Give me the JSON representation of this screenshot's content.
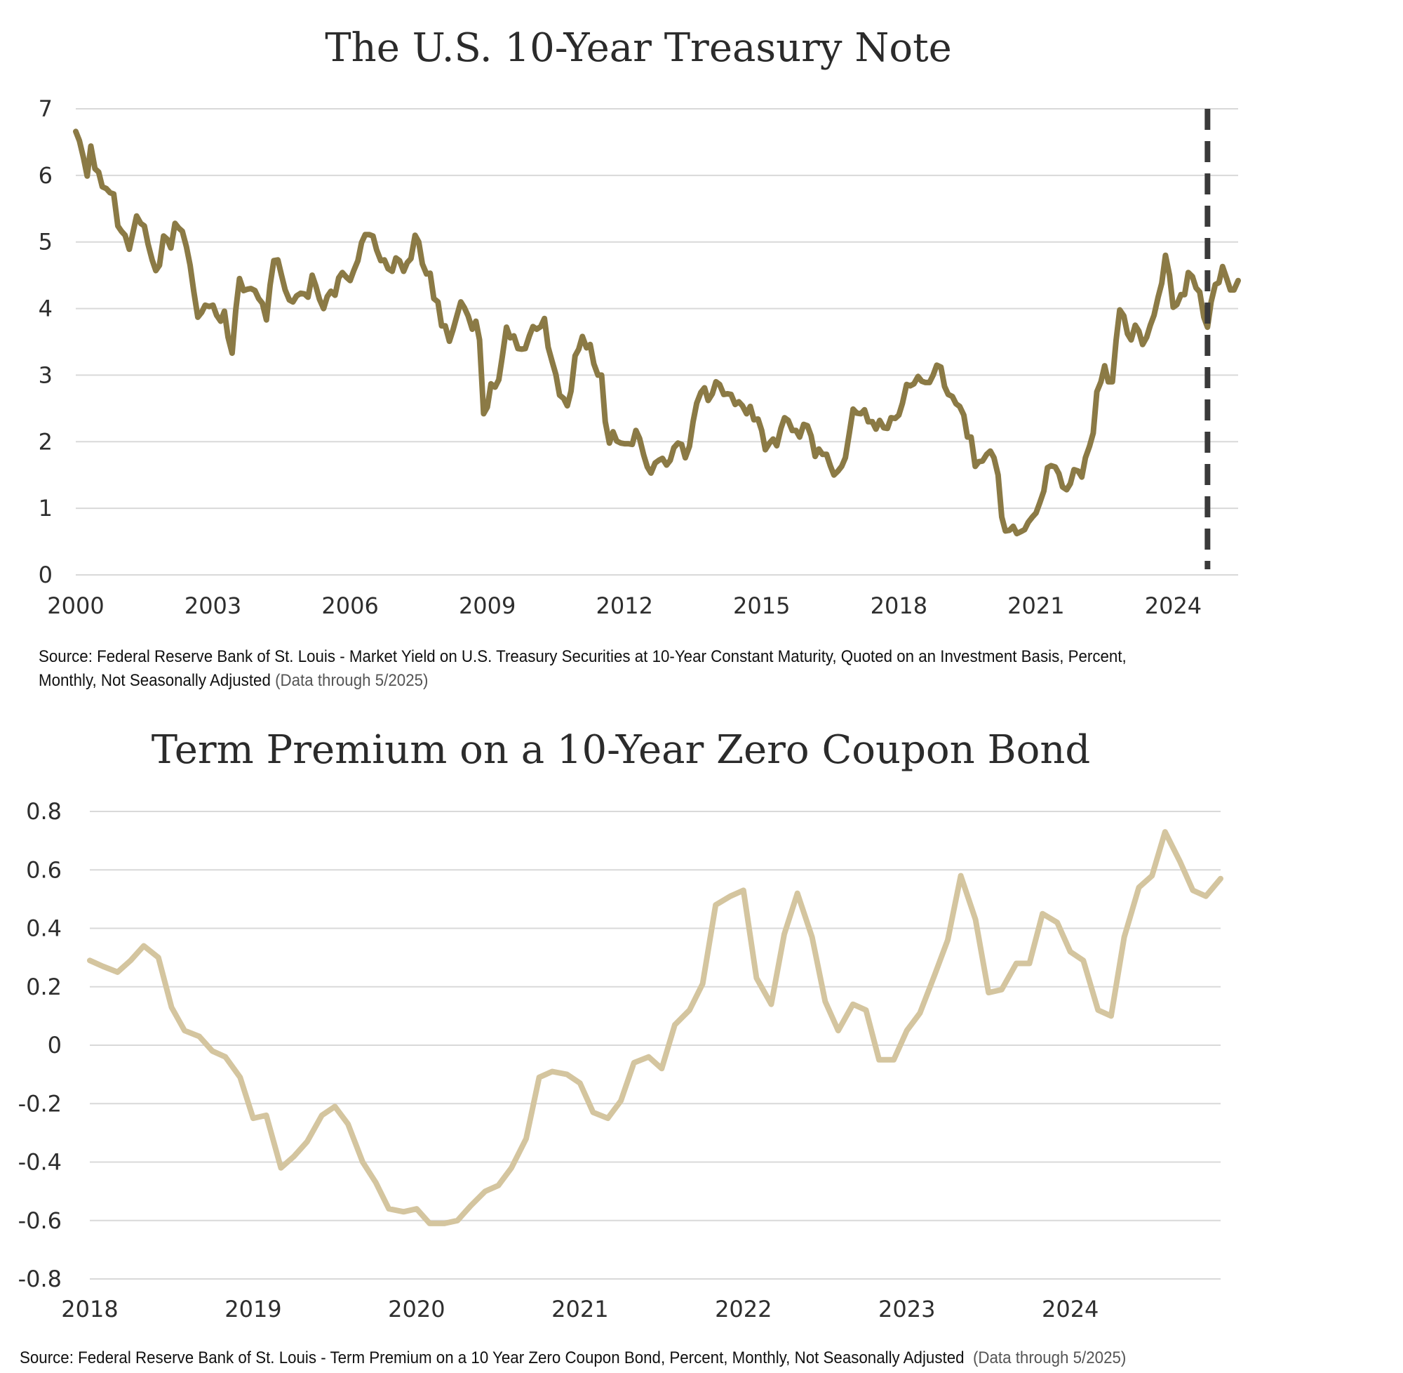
{
  "chart_data": [
    {
      "type": "line",
      "title": "The U.S. 10-Year Treasury Note",
      "xlabel": "",
      "ylabel": "",
      "ylim": [
        0,
        7
      ],
      "xlim": [
        2000.0,
        2025.42
      ],
      "x_ticks": [
        "2000",
        "2003",
        "2006",
        "2009",
        "2012",
        "2015",
        "2018",
        "2021",
        "2024"
      ],
      "y_ticks": [
        "0",
        "1",
        "2",
        "3",
        "4",
        "5",
        "6",
        "7"
      ],
      "grid": true,
      "legend": "none",
      "line_color": "#8b7a45",
      "marker_line": {
        "x": 2024.75,
        "style": "dashed",
        "color": "#3a3a3a"
      },
      "series": [
        {
          "x": [
            2000.0,
            2000.08,
            2000.17,
            2000.25,
            2000.33,
            2000.42,
            2000.5,
            2000.58,
            2000.67,
            2000.75,
            2000.83,
            2000.92,
            2001.0,
            2001.08,
            2001.17,
            2001.25,
            2001.33,
            2001.42,
            2001.5,
            2001.58,
            2001.67,
            2001.75,
            2001.83,
            2001.92,
            2002.0,
            2002.08,
            2002.17,
            2002.25,
            2002.33,
            2002.42,
            2002.5,
            2002.58,
            2002.67,
            2002.75,
            2002.83,
            2002.92,
            2003.0,
            2003.08,
            2003.17,
            2003.25,
            2003.33,
            2003.42,
            2003.5,
            2003.58,
            2003.67,
            2003.75,
            2003.83,
            2003.92,
            2004.0,
            2004.08,
            2004.17,
            2004.25,
            2004.33,
            2004.42,
            2004.5,
            2004.58,
            2004.67,
            2004.75,
            2004.83,
            2004.92,
            2005.0,
            2005.08,
            2005.17,
            2005.25,
            2005.33,
            2005.42,
            2005.5,
            2005.58,
            2005.67,
            2005.75,
            2005.83,
            2005.92,
            2006.0,
            2006.08,
            2006.17,
            2006.25,
            2006.33,
            2006.42,
            2006.5,
            2006.58,
            2006.67,
            2006.75,
            2006.83,
            2006.92,
            2007.0,
            2007.08,
            2007.17,
            2007.25,
            2007.33,
            2007.42,
            2007.5,
            2007.58,
            2007.67,
            2007.75,
            2007.83,
            2007.92,
            2008.0,
            2008.08,
            2008.17,
            2008.25,
            2008.33,
            2008.42,
            2008.5,
            2008.58,
            2008.67,
            2008.75,
            2008.83,
            2008.92,
            2009.0,
            2009.08,
            2009.17,
            2009.25,
            2009.33,
            2009.42,
            2009.5,
            2009.58,
            2009.67,
            2009.75,
            2009.83,
            2009.92,
            2010.0,
            2010.08,
            2010.17,
            2010.25,
            2010.33,
            2010.42,
            2010.5,
            2010.58,
            2010.67,
            2010.75,
            2010.83,
            2010.92,
            2011.0,
            2011.08,
            2011.17,
            2011.25,
            2011.33,
            2011.42,
            2011.5,
            2011.58,
            2011.67,
            2011.75,
            2011.83,
            2011.92,
            2012.0,
            2012.08,
            2012.17,
            2012.25,
            2012.33,
            2012.42,
            2012.5,
            2012.58,
            2012.67,
            2012.75,
            2012.83,
            2012.92,
            2013.0,
            2013.08,
            2013.17,
            2013.25,
            2013.33,
            2013.42,
            2013.5,
            2013.58,
            2013.67,
            2013.75,
            2013.83,
            2013.92,
            2014.0,
            2014.08,
            2014.17,
            2014.25,
            2014.33,
            2014.42,
            2014.5,
            2014.58,
            2014.67,
            2014.75,
            2014.83,
            2014.92,
            2015.0,
            2015.08,
            2015.17,
            2015.25,
            2015.33,
            2015.42,
            2015.5,
            2015.58,
            2015.67,
            2015.75,
            2015.83,
            2015.92,
            2016.0,
            2016.08,
            2016.17,
            2016.25,
            2016.33,
            2016.42,
            2016.5,
            2016.58,
            2016.67,
            2016.75,
            2016.83,
            2016.92,
            2017.0,
            2017.08,
            2017.17,
            2017.25,
            2017.33,
            2017.42,
            2017.5,
            2017.58,
            2017.67,
            2017.75,
            2017.83,
            2017.92,
            2018.0,
            2018.08,
            2018.17,
            2018.25,
            2018.33,
            2018.42,
            2018.5,
            2018.58,
            2018.67,
            2018.75,
            2018.83,
            2018.92,
            2019.0,
            2019.08,
            2019.17,
            2019.25,
            2019.33,
            2019.42,
            2019.5,
            2019.58,
            2019.67,
            2019.75,
            2019.83,
            2019.92,
            2020.0,
            2020.08,
            2020.17,
            2020.25,
            2020.33,
            2020.42,
            2020.5,
            2020.58,
            2020.67,
            2020.75,
            2020.83,
            2020.92,
            2021.0,
            2021.08,
            2021.17,
            2021.25,
            2021.33,
            2021.42,
            2021.5,
            2021.58,
            2021.67,
            2021.75,
            2021.83,
            2021.92,
            2022.0,
            2022.08,
            2022.17,
            2022.25,
            2022.33,
            2022.42,
            2022.5,
            2022.58,
            2022.67,
            2022.75,
            2022.83,
            2022.92,
            2023.0,
            2023.08,
            2023.17,
            2023.25,
            2023.33,
            2023.42,
            2023.5,
            2023.58,
            2023.67,
            2023.75,
            2023.83,
            2023.92,
            2024.0,
            2024.08,
            2024.17,
            2024.25,
            2024.33,
            2024.42,
            2024.5,
            2024.58,
            2024.67,
            2024.75,
            2024.83,
            2024.92,
            2025.0,
            2025.08,
            2025.17,
            2025.25,
            2025.33,
            2025.42
          ],
          "values": [
            6.66,
            6.52,
            6.26,
            5.99,
            6.44,
            6.1,
            6.05,
            5.83,
            5.8,
            5.74,
            5.72,
            5.24,
            5.16,
            5.1,
            4.89,
            5.14,
            5.39,
            5.28,
            5.24,
            4.97,
            4.73,
            4.57,
            4.65,
            5.09,
            5.04,
            4.91,
            5.28,
            5.21,
            5.16,
            4.93,
            4.65,
            4.26,
            3.87,
            3.94,
            4.05,
            4.03,
            4.05,
            3.9,
            3.81,
            3.96,
            3.57,
            3.33,
            3.98,
            4.45,
            4.27,
            4.29,
            4.3,
            4.27,
            4.15,
            4.08,
            3.83,
            4.35,
            4.72,
            4.73,
            4.5,
            4.28,
            4.13,
            4.1,
            4.19,
            4.23,
            4.22,
            4.17,
            4.5,
            4.34,
            4.14,
            4.0,
            4.18,
            4.26,
            4.2,
            4.46,
            4.54,
            4.47,
            4.42,
            4.57,
            4.72,
            4.99,
            5.11,
            5.11,
            5.09,
            4.88,
            4.72,
            4.73,
            4.6,
            4.56,
            4.76,
            4.72,
            4.56,
            4.69,
            4.75,
            5.1,
            5.0,
            4.67,
            4.52,
            4.53,
            4.15,
            4.1,
            3.74,
            3.74,
            3.51,
            3.68,
            3.88,
            4.1,
            4.01,
            3.89,
            3.69,
            3.81,
            3.53,
            2.42,
            2.52,
            2.87,
            2.82,
            2.93,
            3.29,
            3.72,
            3.56,
            3.59,
            3.4,
            3.39,
            3.4,
            3.59,
            3.73,
            3.69,
            3.73,
            3.85,
            3.42,
            3.2,
            3.01,
            2.7,
            2.65,
            2.54,
            2.76,
            3.29,
            3.39,
            3.58,
            3.41,
            3.46,
            3.17,
            3.0,
            3.0,
            2.3,
            1.98,
            2.15,
            2.01,
            1.98,
            1.97,
            1.97,
            1.96,
            2.17,
            2.05,
            1.8,
            1.62,
            1.53,
            1.68,
            1.72,
            1.75,
            1.65,
            1.72,
            1.91,
            1.98,
            1.96,
            1.76,
            1.93,
            2.3,
            2.58,
            2.74,
            2.81,
            2.62,
            2.72,
            2.9,
            2.86,
            2.71,
            2.72,
            2.71,
            2.56,
            2.6,
            2.54,
            2.42,
            2.53,
            2.33,
            2.34,
            2.17,
            1.88,
            1.98,
            2.04,
            1.94,
            2.2,
            2.36,
            2.32,
            2.17,
            2.17,
            2.07,
            2.26,
            2.24,
            2.09,
            1.78,
            1.89,
            1.81,
            1.81,
            1.64,
            1.5,
            1.56,
            1.63,
            1.76,
            2.14,
            2.49,
            2.43,
            2.42,
            2.48,
            2.3,
            2.3,
            2.19,
            2.32,
            2.21,
            2.2,
            2.36,
            2.35,
            2.4,
            2.58,
            2.86,
            2.84,
            2.87,
            2.98,
            2.91,
            2.89,
            2.89,
            3.0,
            3.15,
            3.12,
            2.83,
            2.71,
            2.68,
            2.57,
            2.53,
            2.4,
            2.07,
            2.07,
            1.63,
            1.7,
            1.71,
            1.81,
            1.86,
            1.76,
            1.5,
            0.87,
            0.66,
            0.67,
            0.73,
            0.62,
            0.65,
            0.68,
            0.79,
            0.87,
            0.93,
            1.08,
            1.26,
            1.61,
            1.64,
            1.62,
            1.52,
            1.32,
            1.28,
            1.37,
            1.58,
            1.56,
            1.47,
            1.76,
            1.93,
            2.13,
            2.75,
            2.9,
            3.14,
            2.9,
            2.9,
            3.52,
            3.98,
            3.89,
            3.62,
            3.53,
            3.75,
            3.66,
            3.46,
            3.57,
            3.75,
            3.9,
            4.17,
            4.38,
            4.8,
            4.5,
            4.02,
            4.06,
            4.21,
            4.21,
            4.54,
            4.48,
            4.31,
            4.25,
            3.87,
            3.72,
            4.1,
            4.36,
            4.39,
            4.63,
            4.45,
            4.28,
            4.28,
            4.42
          ]
        }
      ]
    },
    {
      "type": "line",
      "title": "Term Premium on a 10-Year Zero Coupon Bond",
      "xlabel": "",
      "ylabel": "",
      "ylim": [
        -0.8,
        0.8
      ],
      "xlim": [
        2018.0,
        2024.92
      ],
      "x_ticks": [
        "2018",
        "2019",
        "2020",
        "2021",
        "2022",
        "2023",
        "2024"
      ],
      "y_ticks": [
        "0.8",
        "0.6",
        "0.4",
        "0.2",
        "0",
        "-0.2",
        "-0.4",
        "-0.6",
        "-0.8"
      ],
      "grid": true,
      "legend": "none",
      "line_color": "#d4c59f",
      "series": [
        {
          "x": [
            2018.0,
            2018.08,
            2018.17,
            2018.25,
            2018.33,
            2018.42,
            2018.5,
            2018.58,
            2018.67,
            2018.75,
            2018.83,
            2018.92,
            2019.0,
            2019.08,
            2019.17,
            2019.25,
            2019.33,
            2019.42,
            2019.5,
            2019.58,
            2019.67,
            2019.75,
            2019.83,
            2019.92,
            2020.0,
            2020.08,
            2020.17,
            2020.25,
            2020.33,
            2020.42,
            2020.5,
            2020.58,
            2020.67,
            2020.75,
            2020.83,
            2020.92,
            2021.0,
            2021.08,
            2021.17,
            2021.25,
            2021.33,
            2021.42,
            2021.5,
            2021.58,
            2021.67,
            2021.75,
            2021.83,
            2021.92,
            2022.0,
            2022.08,
            2022.17,
            2022.25,
            2022.33,
            2022.42,
            2022.5,
            2022.58,
            2022.67,
            2022.75,
            2022.83,
            2022.92,
            2023.0,
            2023.08,
            2023.17,
            2023.25,
            2023.33,
            2023.42,
            2023.5,
            2023.58,
            2023.67,
            2023.75,
            2023.83,
            2023.92,
            2024.0,
            2024.08,
            2024.17,
            2024.25,
            2024.33,
            2024.42,
            2024.5,
            2024.58,
            2024.67,
            2024.75,
            2024.83,
            2024.92
          ],
          "values": [
            0.29,
            0.27,
            0.25,
            0.29,
            0.34,
            0.3,
            0.13,
            0.05,
            0.03,
            -0.02,
            -0.04,
            -0.11,
            -0.25,
            -0.24,
            -0.42,
            -0.38,
            -0.33,
            -0.24,
            -0.21,
            -0.27,
            -0.4,
            -0.47,
            -0.56,
            -0.57,
            -0.56,
            -0.61,
            -0.61,
            -0.6,
            -0.55,
            -0.5,
            -0.48,
            -0.42,
            -0.32,
            -0.11,
            -0.09,
            -0.1,
            -0.13,
            -0.23,
            -0.25,
            -0.19,
            -0.06,
            -0.04,
            -0.08,
            0.07,
            0.12,
            0.21,
            0.48,
            0.51,
            0.53,
            0.23,
            0.14,
            0.38,
            0.52,
            0.37,
            0.15,
            0.05,
            0.14,
            0.12,
            -0.05,
            -0.05,
            0.05,
            0.11,
            0.24,
            0.36,
            0.58,
            0.43,
            0.18,
            0.19,
            0.28,
            0.28,
            0.45,
            0.42,
            0.32,
            0.29,
            0.12,
            0.1,
            0.37,
            0.54,
            0.58,
            0.73,
            0.63,
            0.53,
            0.51,
            0.57
          ]
        }
      ]
    }
  ],
  "sources": {
    "treasury_line1": "Source: Federal Reserve Bank of St. Louis - Market Yield on U.S. Treasury Securities at 10-Year Constant Maturity, Quoted on an Investment Basis, Percent,",
    "treasury_line2": "Monthly, Not Seasonally Adjusted",
    "treasury_note": "(Data through 5/2025)",
    "premium_text": "Source: Federal Reserve Bank of St. Louis - Term Premium on a 10 Year Zero Coupon Bond, Percent, Monthly, Not Seasonally Adjusted",
    "premium_note": "(Data through 5/2025)"
  }
}
